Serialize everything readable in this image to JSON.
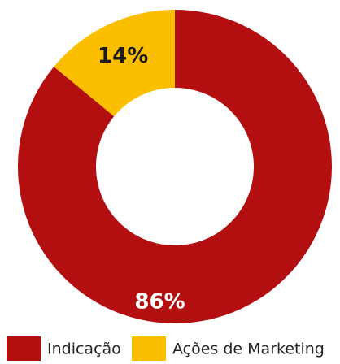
{
  "chart_data": {
    "type": "donut",
    "categories": [
      "Indicação",
      "Ações de Marketing"
    ],
    "values": [
      86,
      14
    ],
    "value_labels": [
      "86%",
      "14%"
    ],
    "colors": [
      "#b40f10",
      "#fbbf00"
    ],
    "label_colors": [
      "#ffffff",
      "#1a1a1a"
    ]
  }
}
